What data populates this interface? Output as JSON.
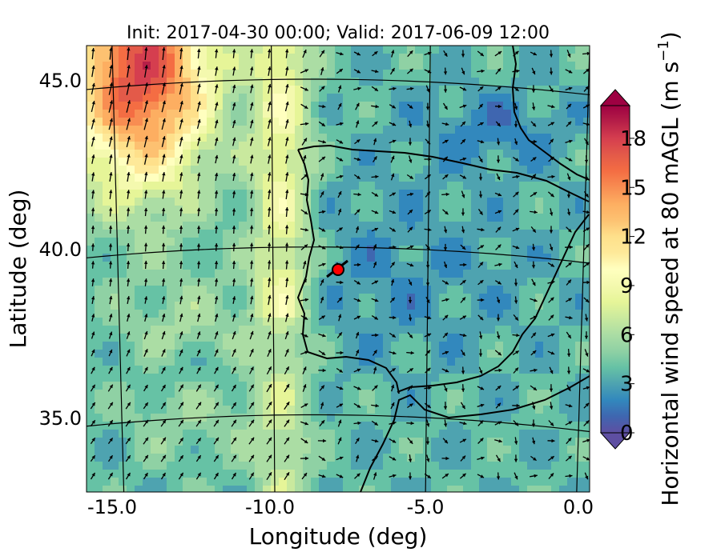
{
  "title": "Init: 2017-04-30 00:00; Valid: 2017-06-09 12:00",
  "xaxis": {
    "label": "Longitude (deg)",
    "ticks": [
      "-15.0",
      "-10.0",
      "-5.0",
      "0.0"
    ]
  },
  "yaxis": {
    "label": "Latitude (deg)",
    "ticks": [
      "45.0",
      "40.0",
      "35.0"
    ]
  },
  "colorbar": {
    "label": "Horizontal wind speed at 80 mAGL (m s",
    "label_exponent": "−1",
    "label_close": ")",
    "ticks": [
      "0",
      "3",
      "6",
      "9",
      "12",
      "15",
      "18"
    ],
    "range": [
      0,
      20
    ],
    "extend": "both",
    "colormap": "Spectral_r",
    "colors": [
      "#5e4fa2",
      "#3f66b0",
      "#3288bd",
      "#4ea3b0",
      "#66c2a5",
      "#8fd1a4",
      "#abdda4",
      "#c9e99e",
      "#e6f598",
      "#f4f9ae",
      "#ffffbf",
      "#fee999",
      "#fee08b",
      "#fdc171",
      "#fdae61",
      "#f88d52",
      "#f46d43",
      "#e35a49",
      "#d53e4f",
      "#b61f48",
      "#9e0142"
    ]
  },
  "marker": {
    "name": "location-marker",
    "color": "#ff0000"
  },
  "chart_data": {
    "type": "heatmap",
    "title": "Init: 2017-04-30 00:00; Valid: 2017-06-09 12:00",
    "xlabel": "Longitude (deg)",
    "ylabel": "Latitude (deg)",
    "xlim": [
      -16,
      0.2
    ],
    "ylim": [
      32.7,
      46
    ],
    "zlabel": "Horizontal wind speed at 80 mAGL (m s−1)",
    "zlim": [
      0,
      20
    ],
    "graticule_lon": [
      -15,
      -10,
      -5,
      0
    ],
    "graticule_lat": [
      45,
      40,
      35
    ],
    "point": {
      "lon": -7.6,
      "lat": 39.4
    }
  }
}
